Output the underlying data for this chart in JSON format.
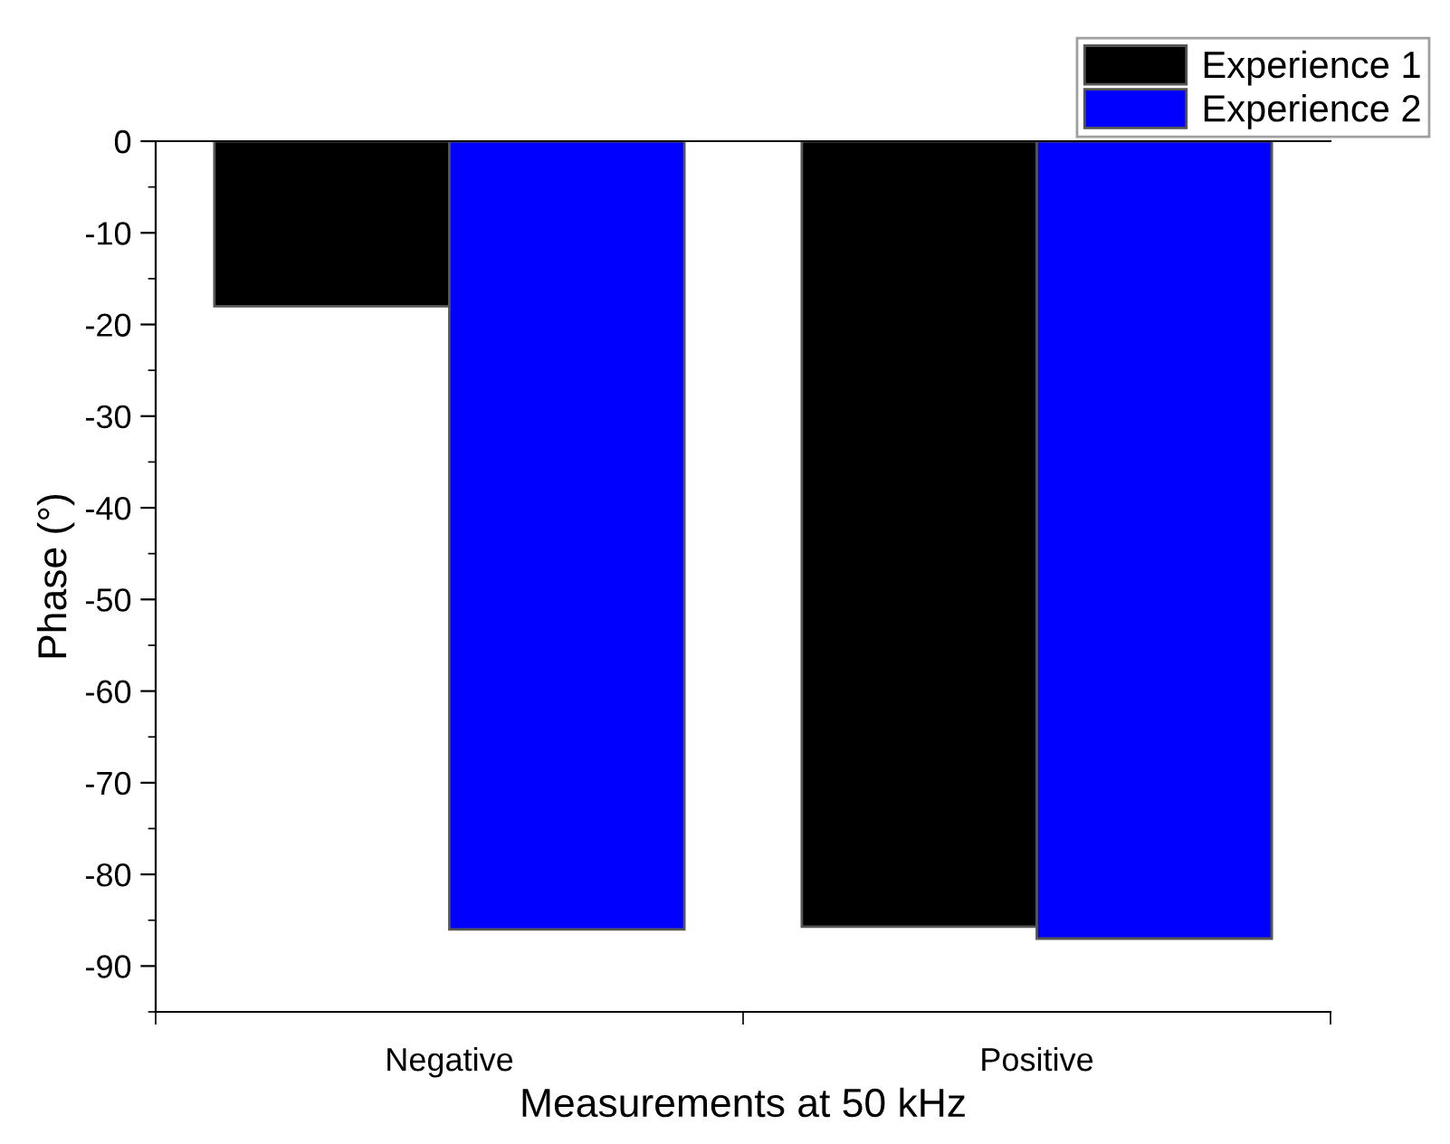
{
  "chart_data": {
    "type": "bar",
    "categories": [
      "Negative",
      "Positive"
    ],
    "series": [
      {
        "name": "Experience 1",
        "color": "#000000",
        "values": [
          -18,
          -85.7
        ]
      },
      {
        "name": "Experience 2",
        "color": "#0000ff",
        "values": [
          -86,
          -87
        ]
      }
    ],
    "xlabel": "Measurements at 50 kHz",
    "ylabel": "Phase (°)",
    "ylim": [
      -95,
      0
    ],
    "yticks": [
      -90,
      -80,
      -70,
      -60,
      -50,
      -40,
      -30,
      -20,
      -10,
      0
    ],
    "legend": "top right",
    "grid": false
  }
}
